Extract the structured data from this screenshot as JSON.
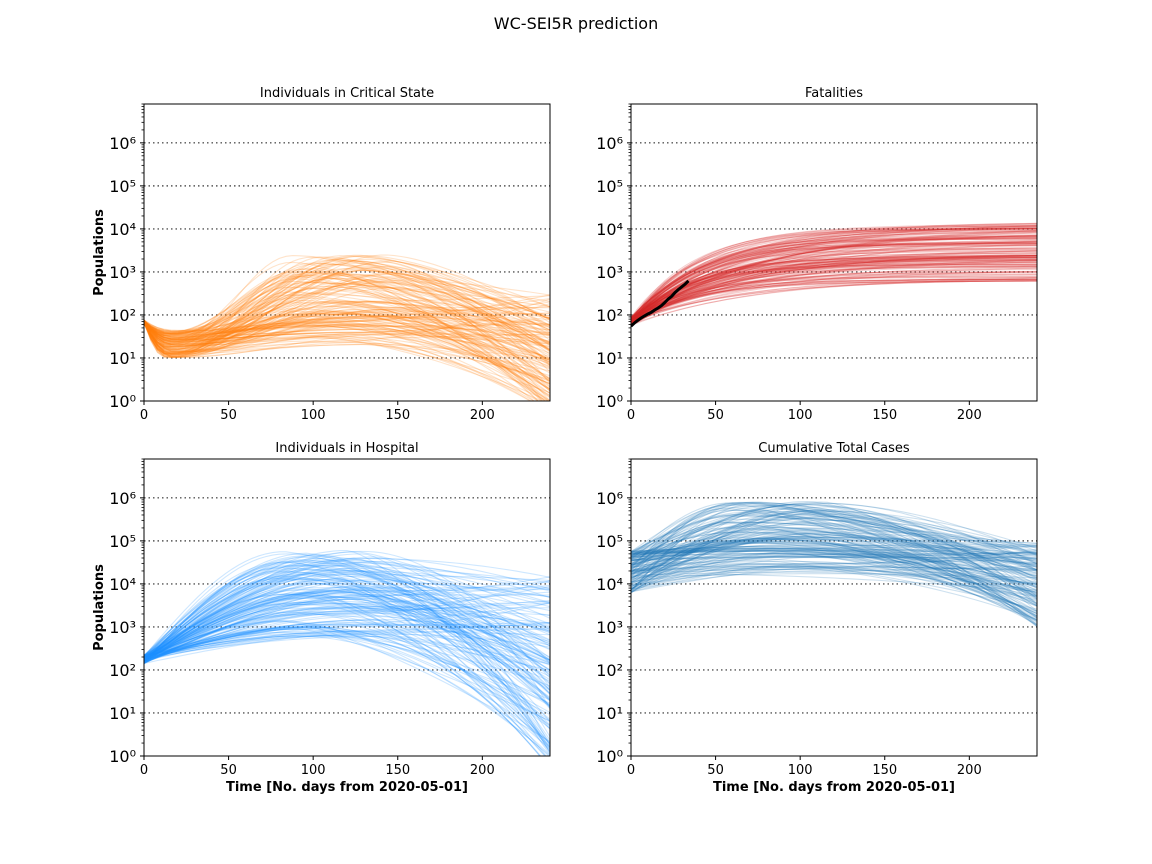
{
  "figure": {
    "title": "WC-SEI5R prediction"
  },
  "chart_data": [
    {
      "type": "line",
      "title": "Individuals in Critical State",
      "xlabel": "",
      "ylabel": "Populations",
      "yscale": "log",
      "xlim": [
        0,
        240
      ],
      "ylim": [
        1,
        8000000
      ],
      "x_ticks": [
        0,
        50,
        100,
        150,
        200
      ],
      "y_ticks": [
        1,
        10,
        100,
        1000,
        10000,
        100000,
        1000000
      ],
      "y_tick_labels": [
        "10⁰",
        "10¹",
        "10²",
        "10³",
        "10⁴",
        "10⁵",
        "10⁶"
      ],
      "grid": "y-dotted",
      "color": "#ff7f0e",
      "ensemble": {
        "description_of_shape": "many simulated trajectories",
        "start": 70,
        "early_min_day": 15,
        "early_min_range": [
          10,
          45
        ],
        "peak_day_range": [
          85,
          150
        ],
        "peak_value_range": [
          20,
          2500
        ],
        "end_value_range": [
          0.5,
          300
        ]
      }
    },
    {
      "type": "line",
      "title": "Fatalities",
      "xlabel": "",
      "ylabel": "",
      "yscale": "log",
      "xlim": [
        0,
        240
      ],
      "ylim": [
        1,
        8000000
      ],
      "x_ticks": [
        0,
        50,
        100,
        150,
        200
      ],
      "y_ticks": [
        1,
        10,
        100,
        1000,
        10000,
        100000,
        1000000
      ],
      "y_tick_labels": [
        "10⁰",
        "10¹",
        "10²",
        "10³",
        "10⁴",
        "10⁵",
        "10⁶"
      ],
      "grid": "y-dotted",
      "color": "#d62728",
      "ensemble": {
        "start_range": [
          55,
          90
        ],
        "plateau_range": [
          600,
          14000
        ]
      },
      "observed": {
        "color": "#000000",
        "x": [
          0,
          2,
          4,
          6,
          8,
          10,
          12,
          14,
          16,
          18,
          20,
          22,
          24,
          26,
          28,
          30,
          32,
          34
        ],
        "y": [
          55,
          65,
          75,
          85,
          95,
          105,
          115,
          130,
          145,
          165,
          195,
          235,
          270,
          330,
          390,
          450,
          520,
          620
        ]
      }
    },
    {
      "type": "line",
      "title": "Individuals in Hospital",
      "xlabel": "Time [No. days from 2020-05-01]",
      "ylabel": "Populations",
      "yscale": "log",
      "xlim": [
        0,
        240
      ],
      "ylim": [
        1,
        8000000
      ],
      "x_ticks": [
        0,
        50,
        100,
        150,
        200
      ],
      "y_ticks": [
        1,
        10,
        100,
        1000,
        10000,
        100000,
        1000000
      ],
      "y_tick_labels": [
        "10⁰",
        "10¹",
        "10²",
        "10³",
        "10⁴",
        "10⁵",
        "10⁶"
      ],
      "grid": "y-dotted",
      "color": "#1e90ff",
      "ensemble": {
        "start_range": [
          140,
          220
        ],
        "peak_day_range": [
          80,
          140
        ],
        "peak_value_range": [
          600,
          60000
        ],
        "end_value_range": [
          0.5,
          15000
        ]
      }
    },
    {
      "type": "line",
      "title": "Cumulative Total Cases",
      "xlabel": "Time [No. days from 2020-05-01]",
      "ylabel": "",
      "yscale": "log",
      "xlim": [
        0,
        240
      ],
      "ylim": [
        1,
        8000000
      ],
      "x_ticks": [
        0,
        50,
        100,
        150,
        200
      ],
      "y_ticks": [
        1,
        10,
        100,
        1000,
        10000,
        100000,
        1000000
      ],
      "y_tick_labels": [
        "10⁰",
        "10¹",
        "10²",
        "10³",
        "10⁴",
        "10⁵",
        "10⁶"
      ],
      "grid": "y-dotted",
      "color": "#1f77b4",
      "ensemble": {
        "start_range": [
          6000,
          60000
        ],
        "peak_day_range": [
          55,
          120
        ],
        "peak_value_range": [
          15000,
          900000
        ],
        "end_value_range": [
          1000,
          90000
        ]
      }
    }
  ]
}
